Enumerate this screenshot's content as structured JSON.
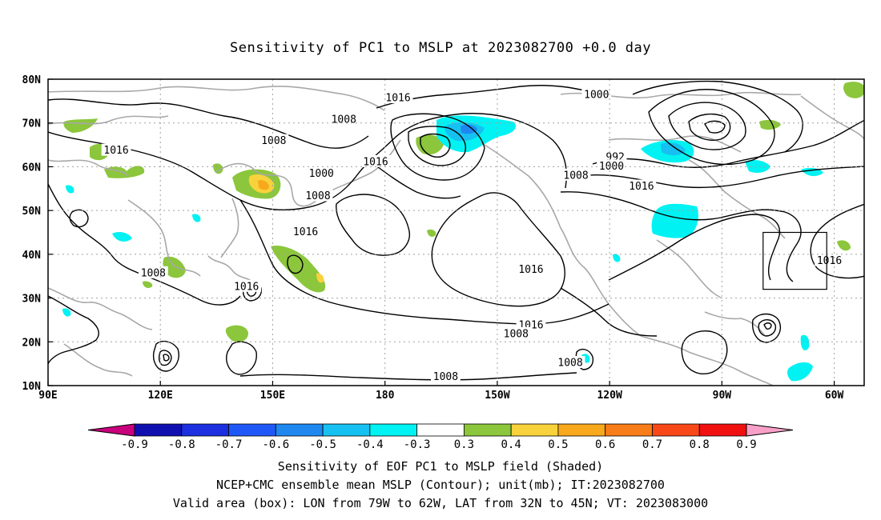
{
  "chart_data": {
    "type": "heatmap",
    "title": "Sensitivity of PC1 to MSLP at 2023082700 +0.0 day",
    "x_ticks": [
      "90E",
      "120E",
      "150E",
      "180",
      "150W",
      "120W",
      "90W",
      "60W"
    ],
    "y_ticks": [
      "10N",
      "20N",
      "30N",
      "40N",
      "50N",
      "60N",
      "70N",
      "80N"
    ],
    "xlim": [
      90,
      308
    ],
    "ylim": [
      10,
      80
    ],
    "grid": true,
    "colorbar": {
      "labels": [
        "-0.9",
        "-0.8",
        "-0.7",
        "-0.6",
        "-0.5",
        "-0.4",
        "-0.3",
        "0.3",
        "0.4",
        "0.5",
        "0.6",
        "0.7",
        "0.8",
        "0.9"
      ],
      "colors": [
        "#c8007c",
        "#1010b0",
        "#1c30e0",
        "#2058f8",
        "#1e88f0",
        "#16c0f0",
        "#00f2f2",
        "#ffffff",
        "#8cc63c",
        "#f8d23c",
        "#f8a81c",
        "#f87c18",
        "#f84818",
        "#f01010",
        "#f8a0c8"
      ]
    },
    "valid_box": {
      "lon": [
        281,
        298
      ],
      "lat": [
        32,
        45
      ]
    },
    "contour_labels": [
      {
        "text": "1016",
        "lon": 183.5,
        "lat": 75.8
      },
      {
        "text": "1008",
        "lon": 150.3,
        "lat": 66
      },
      {
        "text": "1000",
        "lon": 236.5,
        "lat": 76.5
      },
      {
        "text": "1008",
        "lon": 169,
        "lat": 70.9
      },
      {
        "text": "1016",
        "lon": 108.2,
        "lat": 63.8
      },
      {
        "text": "1016",
        "lon": 177.5,
        "lat": 61.2
      },
      {
        "text": "1000",
        "lon": 163,
        "lat": 58.5
      },
      {
        "text": "992",
        "lon": 241.5,
        "lat": 62.3
      },
      {
        "text": "1000",
        "lon": 240.5,
        "lat": 60.2
      },
      {
        "text": "1008",
        "lon": 231,
        "lat": 58.1
      },
      {
        "text": "1016",
        "lon": 248.5,
        "lat": 55.6
      },
      {
        "text": "1008",
        "lon": 162.1,
        "lat": 53.4
      },
      {
        "text": "1016",
        "lon": 158.8,
        "lat": 45.2
      },
      {
        "text": "1016",
        "lon": 298.7,
        "lat": 38.6
      },
      {
        "text": "1016",
        "lon": 219,
        "lat": 36.6
      },
      {
        "text": "1008",
        "lon": 118.1,
        "lat": 35.8
      },
      {
        "text": "1016",
        "lon": 143,
        "lat": 32.7
      },
      {
        "text": "1016",
        "lon": 219,
        "lat": 23.9
      },
      {
        "text": "1008",
        "lon": 215,
        "lat": 21.9
      },
      {
        "text": "1008",
        "lon": 229.5,
        "lat": 15.3
      },
      {
        "text": "1008",
        "lon": 196.2,
        "lat": 12.1
      }
    ]
  },
  "caption": {
    "line1": "Sensitivity of EOF PC1 to MSLP field (Shaded)",
    "line2": "NCEP+CMC ensemble mean MSLP (Contour); unit(mb); IT:2023082700",
    "line3": "Valid area (box): LON from 79W to 62W, LAT from 32N to 45N; VT: 2023083000"
  },
  "colors": {
    "contour": "#000000",
    "coastline": "#a8a8a8",
    "grid": "#a0a0a0"
  }
}
